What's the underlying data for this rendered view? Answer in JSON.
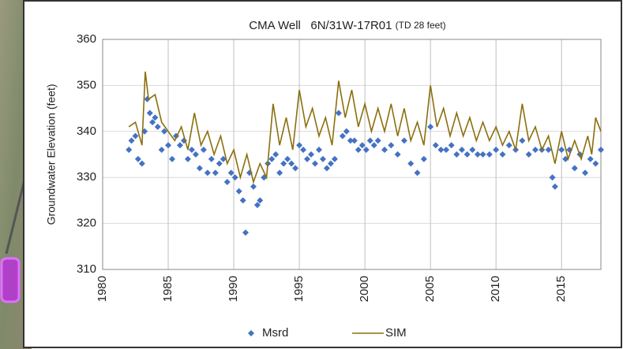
{
  "chart_data": {
    "type": "line",
    "title": "CMA Well   6N/31W-17R01",
    "title_note": "(TD 28 feet)",
    "y_label": "Groundwater Elevation (feet)",
    "xlim": [
      1980,
      2018
    ],
    "xticks": [
      1980,
      1985,
      1990,
      1995,
      2000,
      2005,
      2010,
      2015
    ],
    "ylim": [
      310,
      360
    ],
    "yticks": [
      310,
      320,
      330,
      340,
      350,
      360
    ],
    "grid": true,
    "series": [
      {
        "name": "Msrd",
        "type": "scatter",
        "color": "#4472c4",
        "x": [
          1982.0,
          1982.2,
          1982.5,
          1982.7,
          1983.0,
          1983.2,
          1983.4,
          1983.6,
          1983.8,
          1984.0,
          1984.2,
          1984.5,
          1984.7,
          1985.0,
          1985.3,
          1985.6,
          1985.9,
          1986.2,
          1986.5,
          1986.8,
          1987.1,
          1987.4,
          1987.7,
          1988.0,
          1988.3,
          1988.6,
          1988.9,
          1989.2,
          1989.5,
          1989.8,
          1990.1,
          1990.4,
          1990.7,
          1990.9,
          1991.2,
          1991.5,
          1991.8,
          1992.0,
          1992.3,
          1992.6,
          1992.9,
          1993.2,
          1993.5,
          1993.8,
          1994.1,
          1994.4,
          1994.7,
          1995.0,
          1995.3,
          1995.6,
          1995.9,
          1996.2,
          1996.5,
          1996.8,
          1997.1,
          1997.4,
          1997.7,
          1998.0,
          1998.3,
          1998.6,
          1998.9,
          1999.2,
          1999.5,
          1999.8,
          2000.1,
          2000.4,
          2000.7,
          2001.0,
          2001.5,
          2002.0,
          2002.5,
          2003.0,
          2003.5,
          2004.0,
          2004.5,
          2005.0,
          2005.4,
          2005.8,
          2006.2,
          2006.6,
          2007.0,
          2007.4,
          2007.8,
          2008.2,
          2008.6,
          2009.0,
          2009.5,
          2010.0,
          2010.5,
          2011.0,
          2011.5,
          2012.0,
          2012.5,
          2013.0,
          2013.5,
          2014.0,
          2014.3,
          2014.5,
          2015.0,
          2015.3,
          2015.6,
          2016.0,
          2016.4,
          2016.8,
          2017.2,
          2017.6,
          2018.0
        ],
        "values": [
          336,
          338,
          339,
          334,
          333,
          340,
          347,
          344,
          342,
          343,
          341,
          336,
          340,
          337,
          334,
          339,
          337,
          338,
          334,
          336,
          335,
          332,
          336,
          331,
          334,
          331,
          333,
          334,
          329,
          331,
          330,
          327,
          325,
          318,
          331,
          328,
          324,
          325,
          330,
          333,
          334,
          335,
          331,
          333,
          334,
          333,
          332,
          337,
          336,
          334,
          335,
          333,
          336,
          334,
          332,
          333,
          334,
          344,
          339,
          340,
          338,
          338,
          336,
          337,
          336,
          338,
          337,
          338,
          336,
          337,
          335,
          338,
          333,
          331,
          334,
          341,
          337,
          336,
          336,
          337,
          335,
          336,
          335,
          336,
          335,
          335,
          335,
          336,
          335,
          337,
          336,
          338,
          335,
          336,
          336,
          336,
          330,
          328,
          336,
          334,
          336,
          332,
          335,
          331,
          334,
          333,
          336
        ]
      },
      {
        "name": "SIM",
        "type": "line",
        "color": "#8b6f0d",
        "x": [
          1982.0,
          1982.5,
          1983.0,
          1983.25,
          1983.5,
          1984.0,
          1984.5,
          1985.0,
          1985.5,
          1986.0,
          1986.5,
          1987.0,
          1987.5,
          1988.0,
          1988.5,
          1989.0,
          1989.5,
          1990.0,
          1990.5,
          1991.0,
          1991.5,
          1992.0,
          1992.5,
          1993.0,
          1993.5,
          1994.0,
          1994.5,
          1995.0,
          1995.5,
          1996.0,
          1996.5,
          1997.0,
          1997.5,
          1998.0,
          1998.5,
          1999.0,
          1999.5,
          2000.0,
          2000.5,
          2001.0,
          2001.5,
          2002.0,
          2002.5,
          2003.0,
          2003.5,
          2004.0,
          2004.5,
          2005.0,
          2005.5,
          2006.0,
          2006.5,
          2007.0,
          2007.5,
          2008.0,
          2008.5,
          2009.0,
          2009.5,
          2010.0,
          2010.5,
          2011.0,
          2011.5,
          2012.0,
          2012.5,
          2013.0,
          2013.5,
          2014.0,
          2014.5,
          2015.0,
          2015.5,
          2016.0,
          2016.5,
          2017.0,
          2017.3,
          2017.6,
          2018.0
        ],
        "values": [
          341,
          342,
          337,
          353,
          347,
          348,
          342,
          340,
          338,
          341,
          336,
          344,
          337,
          340,
          335,
          339,
          333,
          336,
          330,
          335,
          329,
          333,
          330,
          346,
          337,
          343,
          336,
          349,
          341,
          345,
          339,
          343,
          337,
          351,
          343,
          349,
          341,
          346,
          340,
          345,
          340,
          346,
          339,
          345,
          338,
          342,
          337,
          350,
          341,
          345,
          339,
          344,
          339,
          343,
          338,
          342,
          338,
          341,
          337,
          340,
          336,
          346,
          338,
          341,
          336,
          339,
          333,
          340,
          334,
          338,
          334,
          339,
          335,
          343,
          340
        ]
      }
    ]
  }
}
